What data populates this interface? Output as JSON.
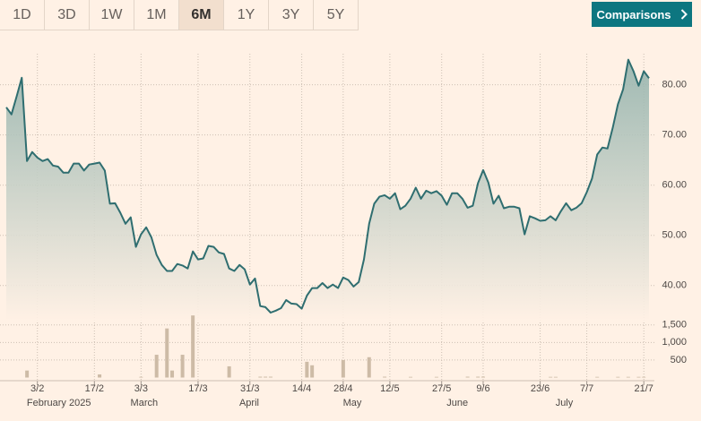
{
  "toolbar": {
    "ranges": [
      "1D",
      "3D",
      "1W",
      "1M",
      "6M",
      "1Y",
      "3Y",
      "5Y"
    ],
    "active": "6M",
    "button": "Comparisons"
  },
  "chart_data": [
    {
      "type": "line",
      "color": "#2f6e70",
      "grid": true,
      "categories": [
        null,
        null,
        null,
        null,
        null,
        null,
        "3/2",
        null,
        null,
        null,
        null,
        null,
        null,
        null,
        null,
        null,
        null,
        "17/2",
        null,
        null,
        null,
        null,
        null,
        null,
        null,
        null,
        "3/3",
        null,
        null,
        null,
        null,
        null,
        null,
        null,
        null,
        null,
        null,
        "17/3",
        null,
        null,
        null,
        null,
        null,
        null,
        null,
        null,
        null,
        "31/3",
        null,
        null,
        null,
        null,
        null,
        null,
        null,
        null,
        null,
        "14/4",
        null,
        null,
        null,
        null,
        null,
        null,
        null,
        "28/4",
        null,
        null,
        null,
        null,
        null,
        null,
        null,
        null,
        "12/5",
        null,
        null,
        null,
        null,
        null,
        null,
        null,
        null,
        null,
        "27/5",
        null,
        null,
        null,
        null,
        null,
        null,
        null,
        "9/6",
        null,
        null,
        null,
        null,
        null,
        null,
        null,
        null,
        null,
        null,
        "23/6",
        null,
        null,
        null,
        null,
        null,
        null,
        null,
        null,
        "7/7",
        null,
        null,
        null,
        null,
        null,
        null,
        null,
        null,
        null,
        null,
        "21/7",
        null
      ],
      "month_labels": [
        null,
        null,
        null,
        null,
        null,
        "February 2025",
        null,
        null,
        null,
        null,
        null,
        null,
        null,
        null,
        null,
        null,
        null,
        null,
        null,
        null,
        null,
        null,
        null,
        null,
        null,
        "March",
        null,
        null,
        null,
        null,
        null,
        null,
        null,
        null,
        null,
        null,
        null,
        null,
        null,
        null,
        null,
        null,
        null,
        null,
        null,
        null,
        "April",
        null,
        null,
        null,
        null,
        null,
        null,
        null,
        null,
        null,
        null,
        null,
        null,
        null,
        null,
        null,
        null,
        null,
        null,
        null,
        "May",
        null,
        null,
        null,
        null,
        null,
        null,
        null,
        null,
        null,
        null,
        null,
        null,
        null,
        null,
        null,
        null,
        null,
        null,
        null,
        "June",
        null,
        null,
        null,
        null,
        null,
        null,
        null,
        null,
        null,
        null,
        null,
        null,
        null,
        null,
        null,
        null,
        null,
        null,
        null,
        null,
        "July",
        null,
        null,
        null,
        null,
        null,
        null,
        null,
        null,
        null,
        null,
        null,
        null,
        null,
        null,
        null,
        null,
        null
      ],
      "values": [
        75.5,
        74.1,
        77.7,
        81.4,
        64.8,
        66.6,
        65.5,
        64.8,
        65.2,
        63.9,
        63.7,
        62.5,
        62.5,
        64.3,
        64.3,
        62.9,
        64.1,
        64.3,
        64.5,
        62.9,
        56.3,
        56.4,
        54.5,
        52.3,
        53.6,
        47.7,
        50.2,
        51.6,
        49.6,
        46.1,
        44.1,
        42.9,
        42.9,
        44.3,
        44.0,
        43.4,
        46.8,
        45.2,
        45.4,
        47.9,
        47.7,
        46.6,
        46.3,
        43.4,
        42.9,
        44.1,
        43.2,
        40.2,
        41.4,
        35.9,
        35.7,
        34.6,
        35.0,
        35.5,
        37.1,
        36.4,
        36.3,
        35.4,
        38.0,
        39.5,
        39.5,
        40.5,
        39.5,
        40.2,
        39.5,
        41.6,
        41.1,
        39.8,
        40.7,
        45.2,
        52.3,
        56.3,
        57.7,
        58.0,
        57.3,
        58.4,
        55.2,
        55.9,
        57.3,
        59.5,
        57.3,
        58.9,
        58.4,
        58.8,
        57.9,
        56.1,
        58.4,
        58.4,
        57.3,
        55.5,
        55.9,
        60.4,
        63.0,
        60.5,
        56.3,
        57.9,
        55.4,
        55.7,
        55.7,
        55.4,
        50.2,
        53.8,
        53.4,
        52.9,
        53.0,
        53.8,
        53.0,
        54.8,
        56.4,
        55.0,
        55.5,
        56.4,
        58.6,
        61.3,
        66.1,
        67.5,
        67.3,
        71.4,
        76.1,
        79.1,
        85.0,
        82.7,
        79.8,
        82.7,
        81.3
      ],
      "ylim": [
        33,
        86
      ],
      "yticks": [
        {
          "value": 40,
          "label": "40.00"
        },
        {
          "value": 50,
          "label": "50.00"
        },
        {
          "value": 60,
          "label": "60.00"
        },
        {
          "value": 70,
          "label": "70.00"
        },
        {
          "value": 80,
          "label": "80.00"
        }
      ]
    },
    {
      "type": "bar",
      "color": "#cdbba6",
      "values": [
        0,
        0,
        0,
        0,
        200,
        0,
        0,
        0,
        0,
        0,
        0,
        0,
        0,
        0,
        0,
        0,
        0,
        0,
        90,
        0,
        0,
        0,
        0,
        0,
        0,
        0,
        20,
        0,
        0,
        650,
        0,
        1400,
        200,
        0,
        650,
        0,
        1770,
        0,
        0,
        0,
        0,
        0,
        0,
        320,
        0,
        0,
        0,
        0,
        0,
        25,
        25,
        25,
        0,
        0,
        0,
        0,
        0,
        0,
        450,
        350,
        0,
        0,
        0,
        0,
        0,
        500,
        0,
        0,
        0,
        0,
        580,
        0,
        0,
        25,
        0,
        0,
        0,
        0,
        20,
        0,
        0,
        0,
        0,
        20,
        0,
        0,
        0,
        0,
        0,
        25,
        0,
        25,
        25,
        0,
        0,
        0,
        0,
        0,
        0,
        0,
        0,
        0,
        0,
        0,
        0,
        20,
        20,
        0,
        0,
        0,
        0,
        0,
        0,
        0,
        20,
        0,
        0,
        0,
        20,
        0,
        20,
        0,
        20,
        20,
        0
      ],
      "ylim": [
        0,
        1800
      ],
      "yticks": [
        500,
        {
          "value": 1000,
          "label": "1,000"
        },
        {
          "value": 1500,
          "label": "1,500"
        }
      ]
    }
  ]
}
